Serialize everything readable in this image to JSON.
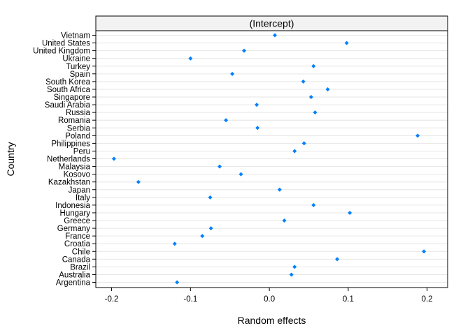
{
  "chart_data": {
    "type": "scatter",
    "strip_label": "(Intercept)",
    "xlabel": "Random effects",
    "ylabel": "Country",
    "xlim": [
      -0.22,
      0.226
    ],
    "x_ticks": [
      -0.2,
      -0.1,
      0.0,
      0.1,
      0.2
    ],
    "x_tick_labels": [
      "-0.2",
      "-0.1",
      "0.0",
      "0.1",
      "0.2"
    ],
    "grid": true,
    "point_color": "#0080FF",
    "categories": [
      "Vietnam",
      "United States",
      "United Kingdom",
      "Ukraine",
      "Turkey",
      "Spain",
      "South Korea",
      "South Africa",
      "Singapore",
      "Saudi Arabia",
      "Russia",
      "Romania",
      "Serbia",
      "Poland",
      "Philippines",
      "Peru",
      "Netherlands",
      "Malaysia",
      "Kosovo",
      "Kazakhstan",
      "Japan",
      "Italy",
      "Indonesia",
      "Hungary",
      "Greece",
      "Germany",
      "France",
      "Croatia",
      "Chile",
      "Canada",
      "Brazil",
      "Australia",
      "Argentina"
    ],
    "values": [
      0.007,
      0.098,
      -0.032,
      -0.1,
      0.056,
      -0.047,
      0.043,
      0.074,
      0.053,
      -0.016,
      0.058,
      -0.055,
      -0.015,
      0.188,
      0.044,
      0.032,
      -0.197,
      -0.063,
      -0.036,
      -0.166,
      0.013,
      -0.075,
      0.056,
      0.102,
      0.019,
      -0.074,
      -0.085,
      -0.12,
      0.196,
      0.086,
      0.032,
      0.028,
      -0.117
    ]
  }
}
